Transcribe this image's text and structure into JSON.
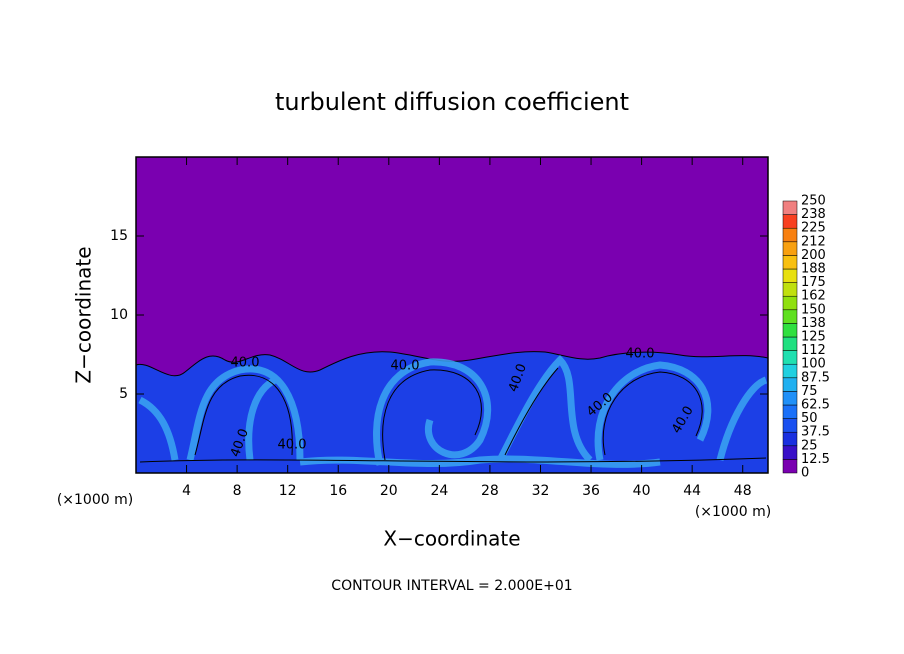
{
  "chart_data": {
    "type": "contour",
    "title": "turbulent diffusion coefficient",
    "xlabel": "X−coordinate",
    "ylabel": "Z−coordinate",
    "x_unit_left": "(×1000 m)",
    "x_unit_right": "(×1000 m)",
    "xlim": [
      0,
      50
    ],
    "xticks": [
      4,
      8,
      12,
      16,
      20,
      24,
      28,
      32,
      36,
      40,
      44,
      48
    ],
    "ylim": [
      0,
      20
    ],
    "yticks": [
      5,
      10,
      15
    ],
    "contour_labels": [
      "40.0",
      "40.0",
      "40.0",
      "40.0",
      "40.0",
      "40.0",
      "40.0",
      "40.0"
    ],
    "contour_interval": "CONTOUR INTERVAL = 2.000E+01",
    "colorbar": {
      "levels": [
        0,
        12.5,
        25,
        37.5,
        50,
        62.5,
        75,
        87.5,
        100,
        112,
        125,
        138,
        150,
        162,
        175,
        188,
        200,
        212,
        225,
        238,
        250
      ],
      "colors": [
        "#7a00b0",
        "#3a10c8",
        "#1a30e0",
        "#1a50f0",
        "#1a70f8",
        "#2090f8",
        "#20b0f0",
        "#20d0e0",
        "#20e0b0",
        "#20e080",
        "#30e040",
        "#60e020",
        "#90e010",
        "#c0e010",
        "#e8e010",
        "#f8c010",
        "#f8a010",
        "#f88010",
        "#f84020",
        "#f08080"
      ]
    }
  }
}
